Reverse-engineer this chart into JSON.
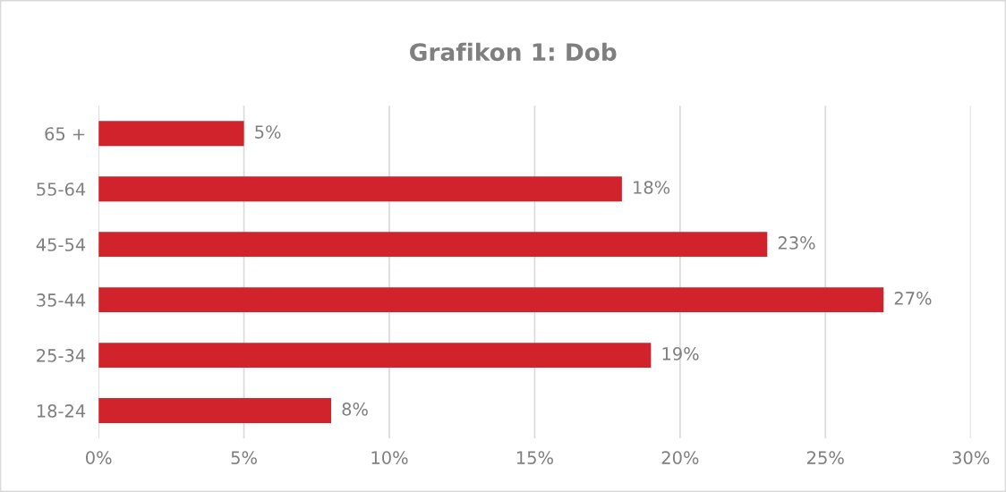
{
  "chart_data": {
    "type": "bar",
    "orientation": "horizontal",
    "title": "Grafikon 1: Dob",
    "categories": [
      "65 +",
      "55-64",
      "45-54",
      "35-44",
      "25-34",
      "18-24"
    ],
    "values": [
      5,
      18,
      23,
      27,
      19,
      8
    ],
    "value_labels": [
      "5%",
      "18%",
      "23%",
      "27%",
      "19%",
      "8%"
    ],
    "color": "#d0232b",
    "xlim": [
      0,
      30
    ],
    "xticks": [
      {
        "value": 0,
        "label": "0%"
      },
      {
        "value": 5,
        "label": "5%"
      },
      {
        "value": 10,
        "label": "10%"
      },
      {
        "value": 15,
        "label": "15%"
      },
      {
        "value": 20,
        "label": "20%"
      },
      {
        "value": 25,
        "label": "25%"
      },
      {
        "value": 30,
        "label": "30%"
      }
    ],
    "grid": "x",
    "legend": false
  }
}
